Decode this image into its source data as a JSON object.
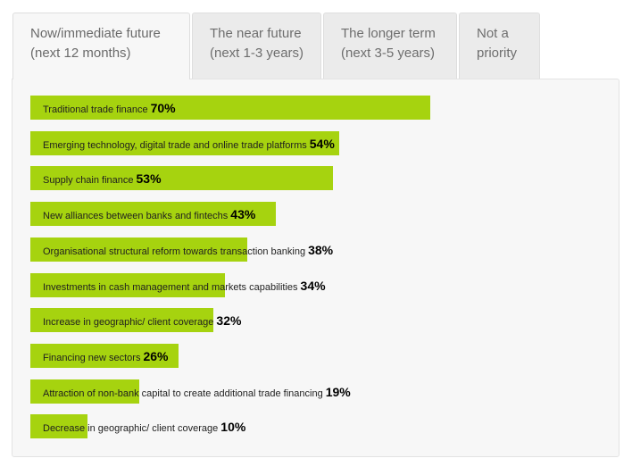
{
  "tabs": [
    {
      "line1": "Now/immediate future",
      "line2": "(next 12 months)",
      "active": true
    },
    {
      "line1": "The near future",
      "line2": "(next 1-3 years)",
      "active": false
    },
    {
      "line1": "The longer term",
      "line2": "(next 3-5 years)",
      "active": false
    },
    {
      "line1": "Not a",
      "line2": "priority",
      "active": false
    }
  ],
  "colors": {
    "bar": "#a6d30f",
    "panel": "#f7f7f7",
    "tab": "#ebebeb"
  },
  "chart_data": {
    "type": "bar",
    "orientation": "horizontal",
    "unit": "%",
    "xlim": [
      0,
      100
    ],
    "categories": [
      "Traditional trade finance",
      "Emerging technology, digital trade and online trade platforms",
      "Supply chain finance",
      "New alliances between banks and fintechs",
      "Organisational structural reform towards transaction banking",
      "Investments in cash management and markets capabilities",
      "Increase in geographic/ client coverage",
      "Financing new sectors",
      "Attraction of non-bank capital to create additional trade financing",
      "Decrease in geographic/ client coverage"
    ],
    "values": [
      70,
      54,
      53,
      43,
      38,
      34,
      32,
      26,
      19,
      10
    ],
    "value_labels": [
      "70%",
      "54%",
      "53%",
      "43%",
      "38%",
      "34%",
      "32%",
      "26%",
      "19%",
      "10%"
    ]
  }
}
